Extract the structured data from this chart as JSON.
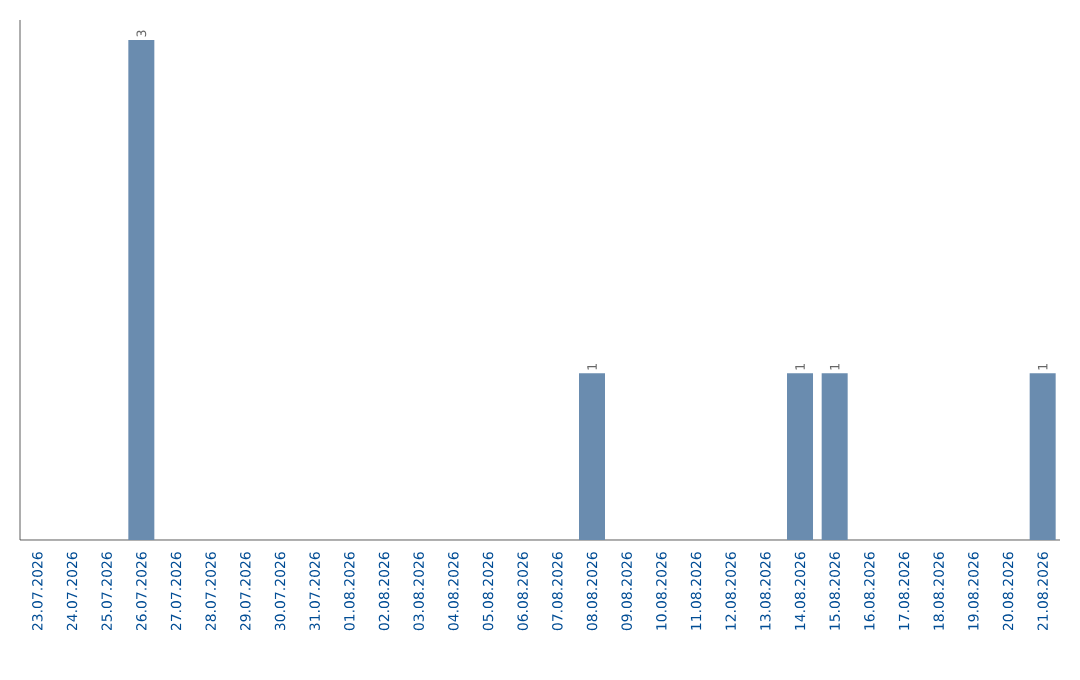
{
  "chart_data": {
    "type": "bar",
    "categories": [
      "23.07.2026",
      "24.07.2026",
      "25.07.2026",
      "26.07.2026",
      "27.07.2026",
      "28.07.2026",
      "29.07.2026",
      "30.07.2026",
      "31.07.2026",
      "01.08.2026",
      "02.08.2026",
      "03.08.2026",
      "04.08.2026",
      "05.08.2026",
      "06.08.2026",
      "07.08.2026",
      "08.08.2026",
      "09.08.2026",
      "10.08.2026",
      "11.08.2026",
      "12.08.2026",
      "13.08.2026",
      "14.08.2026",
      "15.08.2026",
      "16.08.2026",
      "17.08.2026",
      "18.08.2026",
      "19.08.2026",
      "20.08.2026",
      "21.08.2026"
    ],
    "values": [
      0,
      0,
      0,
      3,
      0,
      0,
      0,
      0,
      0,
      0,
      0,
      0,
      0,
      0,
      0,
      0,
      1,
      0,
      0,
      0,
      0,
      0,
      1,
      1,
      0,
      0,
      0,
      0,
      0,
      1
    ],
    "value_labels": [
      null,
      null,
      null,
      "3",
      null,
      null,
      null,
      null,
      null,
      null,
      null,
      null,
      null,
      null,
      null,
      null,
      "1",
      null,
      null,
      null,
      null,
      null,
      "1",
      "1",
      null,
      null,
      null,
      null,
      null,
      "1"
    ],
    "color": "#6a8caf",
    "grid": false,
    "tick_labels": "x"
  }
}
